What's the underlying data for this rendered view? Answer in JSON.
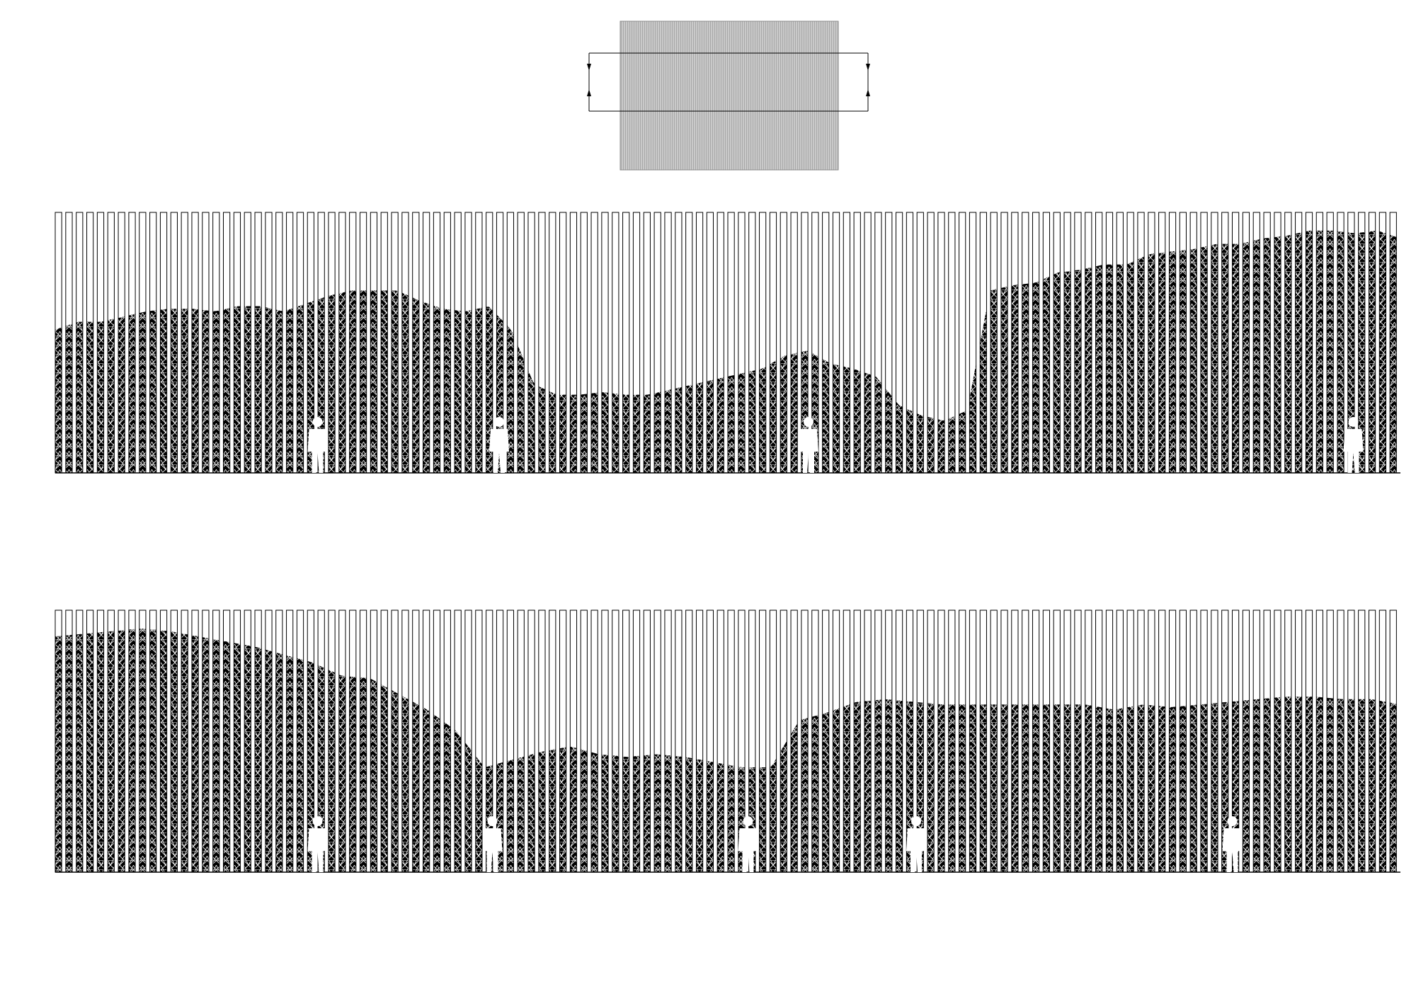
{
  "drawing": {
    "type": "architectural-elevation",
    "background_color": "#ffffff",
    "ink_color": "#000000",
    "key_plan": {
      "fill_color": "#c9c9c9",
      "hatch": "vertical-lines",
      "section_markers": [
        {
          "arrow": "down"
        },
        {
          "arrow": "down"
        },
        {
          "arrow": "up"
        },
        {
          "arrow": "up"
        }
      ]
    },
    "elevations": [
      {
        "name": "elevation-1",
        "fin_count": 128,
        "fill": "truss-lattice",
        "profile": [
          0.55,
          0.58,
          0.58,
          0.6,
          0.62,
          0.63,
          0.63,
          0.62,
          0.64,
          0.64,
          0.62,
          0.65,
          0.68,
          0.7,
          0.7,
          0.7,
          0.66,
          0.63,
          0.62,
          0.64,
          0.55,
          0.34,
          0.3,
          0.3,
          0.31,
          0.3,
          0.3,
          0.32,
          0.34,
          0.36,
          0.38,
          0.4,
          0.45,
          0.47,
          0.42,
          0.4,
          0.37,
          0.26,
          0.22,
          0.2,
          0.24,
          0.7,
          0.72,
          0.73,
          0.77,
          0.78,
          0.8,
          0.8,
          0.84,
          0.85,
          0.86,
          0.88,
          0.88,
          0.9,
          0.91,
          0.93,
          0.93,
          0.92,
          0.93,
          0.9
        ],
        "figures": [
          {
            "position": 0.195
          },
          {
            "position": 0.33
          },
          {
            "position": 0.56
          },
          {
            "position": 0.965
          }
        ]
      },
      {
        "name": "elevation-2",
        "fin_count": 128,
        "fill": "truss-lattice",
        "profile": [
          0.9,
          0.91,
          0.92,
          0.93,
          0.92,
          0.9,
          0.88,
          0.86,
          0.83,
          0.8,
          0.75,
          0.74,
          0.68,
          0.62,
          0.54,
          0.4,
          0.43,
          0.46,
          0.48,
          0.45,
          0.44,
          0.45,
          0.44,
          0.42,
          0.4,
          0.4,
          0.58,
          0.61,
          0.65,
          0.66,
          0.65,
          0.64,
          0.64,
          0.64,
          0.64,
          0.64,
          0.64,
          0.62,
          0.64,
          0.63,
          0.64,
          0.65,
          0.66,
          0.67,
          0.67,
          0.66,
          0.66,
          0.64
        ],
        "figures": [
          {
            "position": 0.195
          },
          {
            "position": 0.325
          },
          {
            "position": 0.515
          },
          {
            "position": 0.64
          },
          {
            "position": 0.875
          }
        ]
      }
    ]
  }
}
